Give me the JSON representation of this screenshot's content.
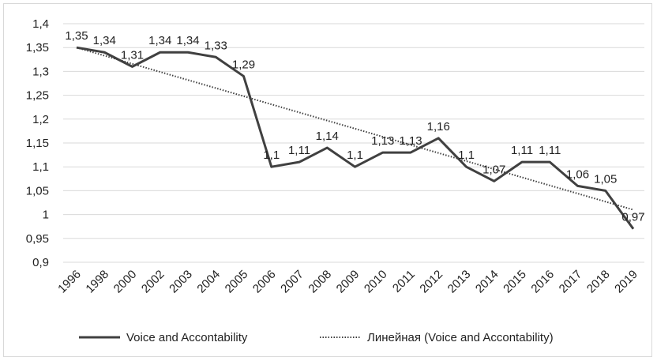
{
  "chart_data": {
    "type": "line",
    "title": "",
    "xlabel": "",
    "ylabel": "",
    "categories": [
      "1996",
      "1998",
      "2000",
      "2002",
      "2003",
      "2004",
      "2005",
      "2006",
      "2007",
      "2008",
      "2009",
      "2010",
      "2011",
      "2012",
      "2013",
      "2014",
      "2015",
      "2016",
      "2017",
      "2018",
      "2019"
    ],
    "ylim": [
      0.9,
      1.4
    ],
    "yticks": [
      0.9,
      0.95,
      1,
      1.05,
      1.1,
      1.15,
      1.2,
      1.25,
      1.3,
      1.35,
      1.4
    ],
    "ytick_labels": [
      "0,9",
      "0,95",
      "1",
      "1,05",
      "1,1",
      "1,15",
      "1,2",
      "1,25",
      "1,3",
      "1,35",
      "1,4"
    ],
    "grid": true,
    "legend_position": "bottom",
    "series": [
      {
        "name": "Voice and Accontability",
        "style": "solid",
        "color": "#404040",
        "values": [
          1.35,
          1.34,
          1.31,
          1.34,
          1.34,
          1.33,
          1.29,
          1.1,
          1.11,
          1.14,
          1.1,
          1.13,
          1.13,
          1.16,
          1.1,
          1.07,
          1.11,
          1.11,
          1.06,
          1.05,
          0.97
        ],
        "data_labels": [
          "1,35",
          "1,34",
          "1,31",
          "1,34",
          "1,34",
          "1,33",
          "1,29",
          "1,1",
          "1,11",
          "1,14",
          "1,1",
          "1,13",
          "1,13",
          "1,16",
          "1,1",
          "1,07",
          "1,11",
          "1,11",
          "1,06",
          "1,05",
          "0,97"
        ]
      },
      {
        "name": "Линейная (Voice and Accontability)",
        "style": "dotted",
        "color": "#404040",
        "trend_start": 1.35,
        "trend_end": 1.01
      }
    ]
  }
}
